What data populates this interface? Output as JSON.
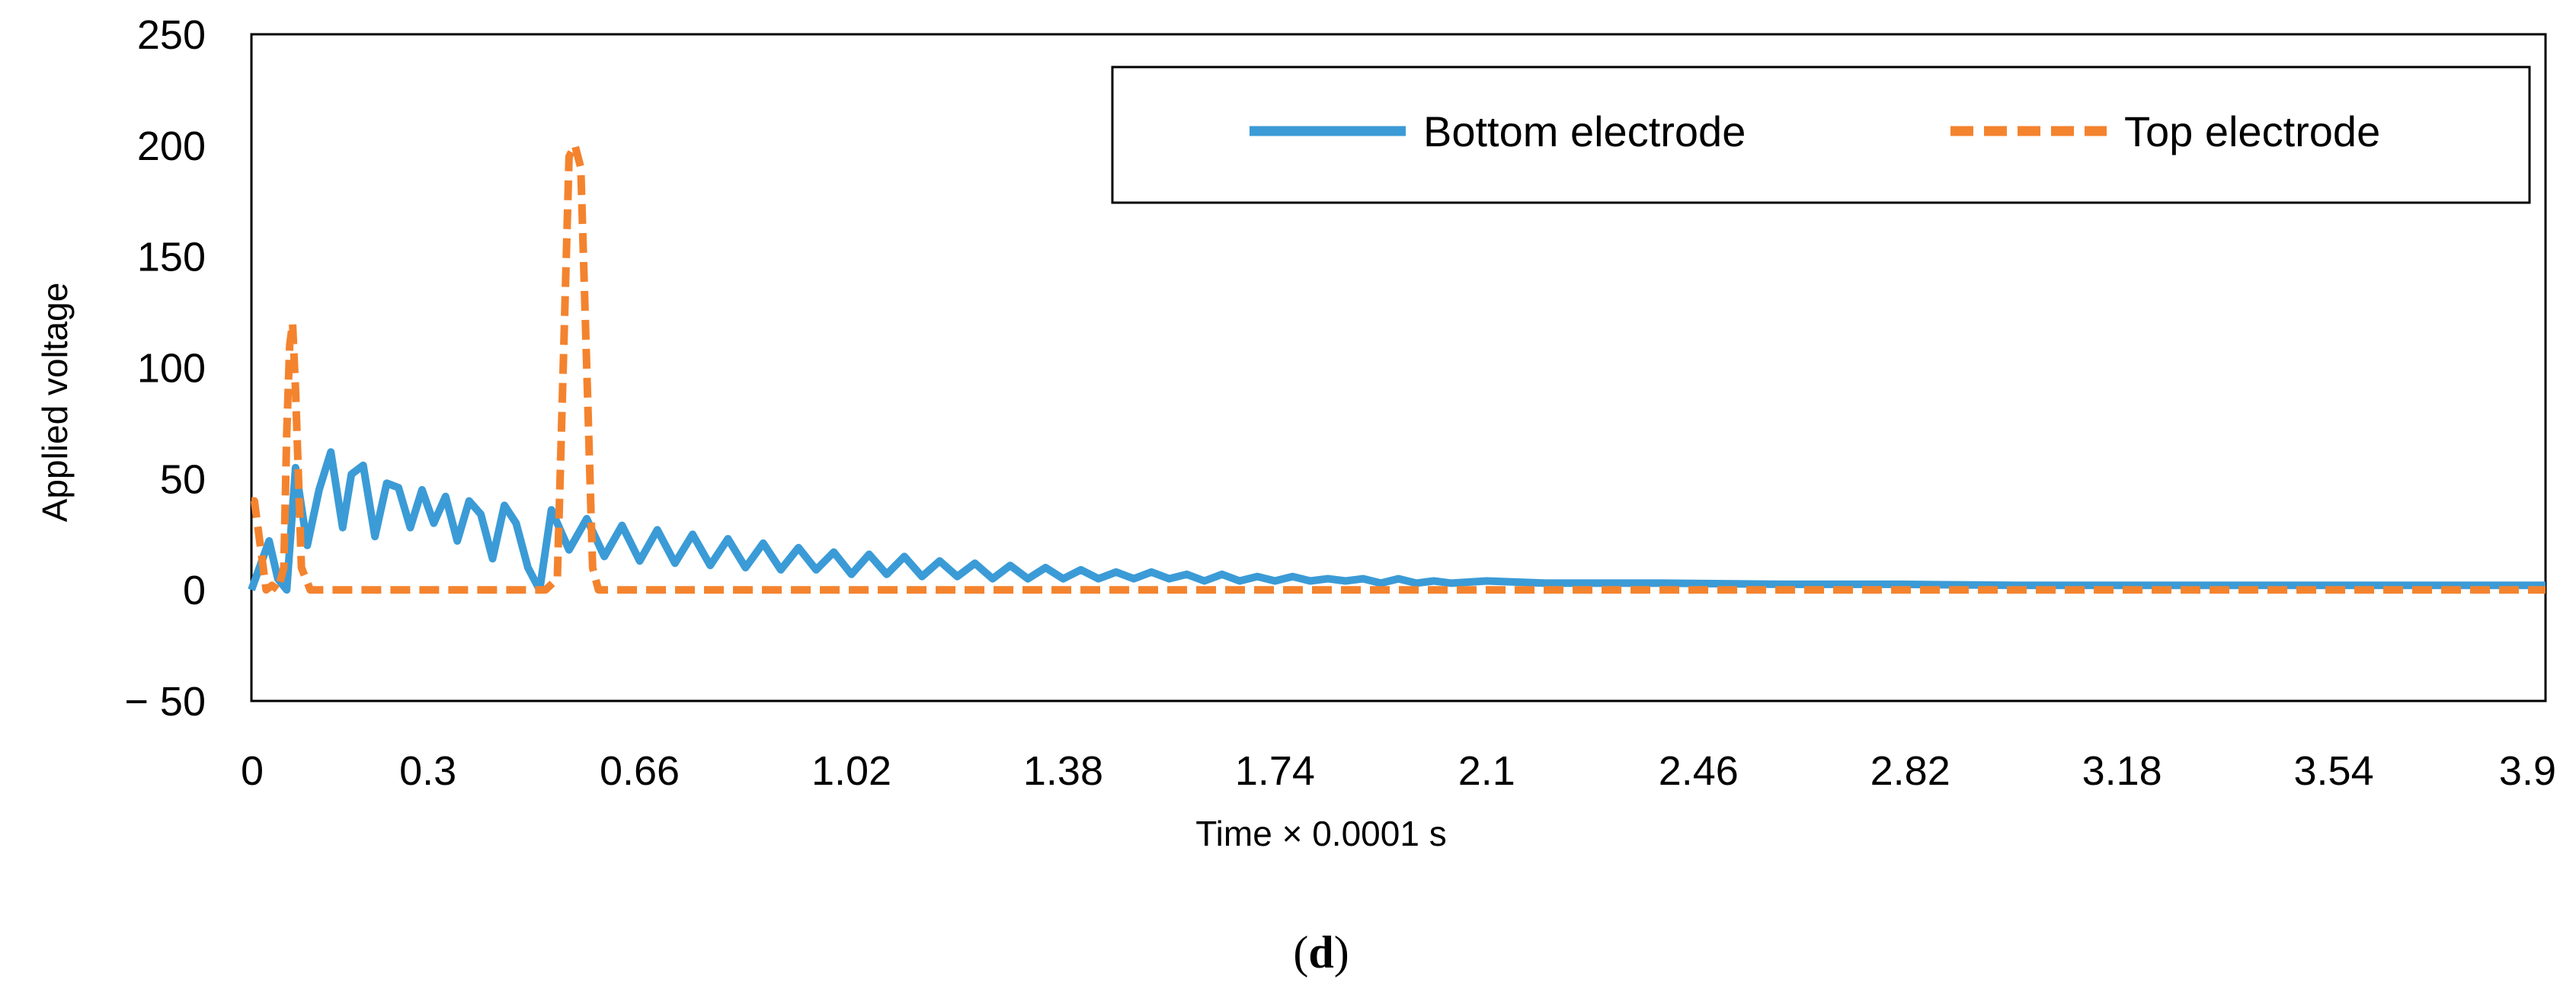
{
  "chart_data": {
    "type": "line",
    "title": "",
    "xlabel": "Time × 0.0001 s",
    "ylabel": "Applied voltage",
    "caption_open": "(",
    "caption_letter": "d",
    "caption_close": ")",
    "xlim": [
      0,
      3.9
    ],
    "ylim": [
      -50,
      250
    ],
    "x_ticks": [
      0,
      0.3,
      0.66,
      1.02,
      1.38,
      1.74,
      2.1,
      2.46,
      2.82,
      3.18,
      3.54,
      3.9
    ],
    "x_tick_labels": [
      "0",
      "0.3",
      "0.66",
      "1.02",
      "1.38",
      "1.74",
      "2.1",
      "2.46",
      "2.82",
      "3.18",
      "3.54",
      "3.9"
    ],
    "y_ticks": [
      -50,
      0,
      50,
      100,
      150,
      200,
      250
    ],
    "y_tick_labels": [
      "− 50",
      "0",
      "50",
      "100",
      "150",
      "200",
      "250"
    ],
    "grid": false,
    "legend_position": "top-right",
    "series": [
      {
        "name": "Bottom electrode",
        "color": "#3B9BD6",
        "style": "solid",
        "x": [
          0,
          0.03,
          0.045,
          0.06,
          0.075,
          0.095,
          0.115,
          0.135,
          0.155,
          0.17,
          0.19,
          0.21,
          0.23,
          0.25,
          0.27,
          0.29,
          0.31,
          0.33,
          0.35,
          0.37,
          0.39,
          0.41,
          0.43,
          0.45,
          0.47,
          0.49,
          0.51,
          0.54,
          0.57,
          0.6,
          0.63,
          0.66,
          0.69,
          0.72,
          0.75,
          0.78,
          0.81,
          0.84,
          0.87,
          0.9,
          0.93,
          0.96,
          0.99,
          1.02,
          1.05,
          1.08,
          1.11,
          1.14,
          1.17,
          1.2,
          1.23,
          1.26,
          1.29,
          1.32,
          1.35,
          1.38,
          1.41,
          1.44,
          1.47,
          1.5,
          1.53,
          1.56,
          1.59,
          1.62,
          1.65,
          1.68,
          1.71,
          1.74,
          1.77,
          1.8,
          1.83,
          1.86,
          1.89,
          1.92,
          1.95,
          1.98,
          2.01,
          2.04,
          2.1,
          2.2,
          2.4,
          2.6,
          2.8,
          3.0,
          3.2,
          3.4,
          3.6,
          3.8,
          3.9
        ],
        "y": [
          0,
          22,
          5,
          0,
          55,
          20,
          45,
          62,
          28,
          52,
          56,
          24,
          48,
          46,
          28,
          45,
          30,
          42,
          22,
          40,
          34,
          14,
          38,
          30,
          10,
          0,
          36,
          18,
          32,
          15,
          29,
          13,
          27,
          12,
          25,
          11,
          23,
          10,
          21,
          9,
          19,
          9,
          17,
          7,
          16,
          7,
          15,
          6,
          13,
          6,
          12,
          5,
          11,
          5,
          10,
          5,
          9,
          5,
          8,
          5,
          8,
          5,
          7,
          4,
          7,
          4,
          6,
          4,
          6,
          4,
          5,
          4,
          5,
          3,
          5,
          3,
          4,
          3,
          4,
          3,
          3,
          2.5,
          2.5,
          2,
          2,
          2,
          2,
          2,
          2
        ]
      },
      {
        "name": "Top electrode",
        "color": "#F4832E",
        "style": "dashed",
        "x": [
          0,
          0.005,
          0.015,
          0.025,
          0.035,
          0.045,
          0.055,
          0.06,
          0.065,
          0.07,
          0.075,
          0.08,
          0.085,
          0.1,
          0.45,
          0.5,
          0.52,
          0.53,
          0.54,
          0.55,
          0.56,
          0.57,
          0.58,
          0.59,
          0.6,
          0.62,
          0.65,
          0.7,
          1.0,
          2.0,
          3.0,
          3.9
        ],
        "y": [
          40,
          40,
          20,
          0,
          2,
          0,
          10,
          70,
          110,
          120,
          90,
          50,
          10,
          0,
          0,
          0,
          5,
          100,
          195,
          200,
          190,
          100,
          10,
          0,
          0,
          0,
          0,
          0,
          0,
          0,
          0,
          0
        ]
      }
    ]
  }
}
